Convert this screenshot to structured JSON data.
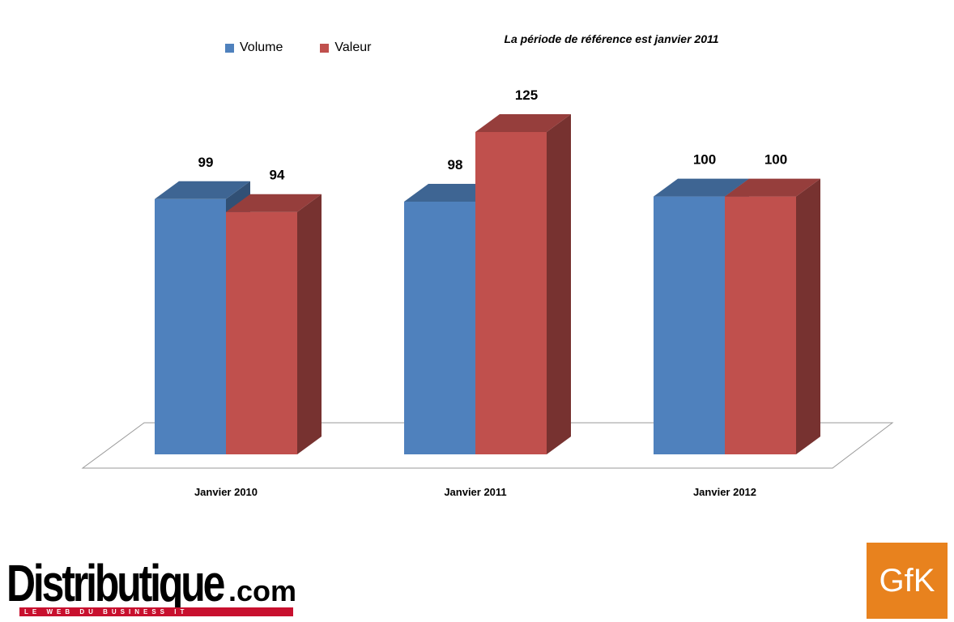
{
  "chart_data": {
    "type": "bar",
    "categories": [
      "Janvier 2010",
      "Janvier 2011",
      "Janvier 2012"
    ],
    "series": [
      {
        "name": "Volume",
        "values": [
          99,
          98,
          100
        ],
        "color": "#4f81bd"
      },
      {
        "name": "Valeur",
        "values": [
          94,
          125,
          100
        ],
        "color": "#c0504d"
      }
    ],
    "note": "La période de référence est janvier 2011",
    "ylim": [
      0,
      125
    ],
    "grid": false,
    "legend_position": "top-left",
    "style": "3d-column"
  },
  "logos": {
    "left": {
      "text": "Distributique",
      "suffix": ".com",
      "tagline": "LE WEB DU BUSINESS IT"
    },
    "right": {
      "text": "GfK",
      "color": "#e8821e"
    }
  }
}
